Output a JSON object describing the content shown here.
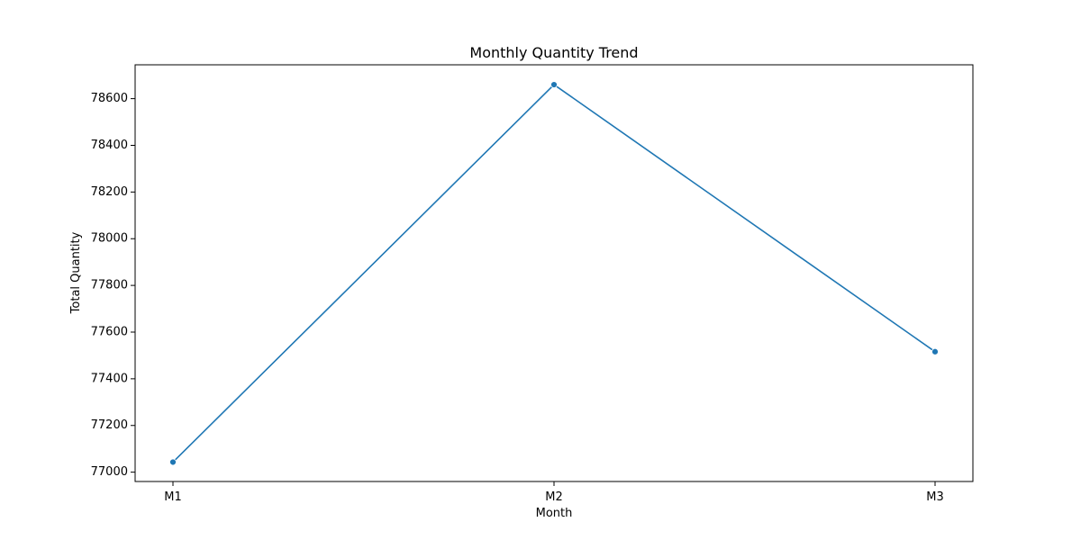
{
  "chart_data": {
    "type": "line",
    "title": "Monthly Quantity Trend",
    "xlabel": "Month",
    "ylabel": "Total Quantity",
    "categories": [
      "M1",
      "M2",
      "M3"
    ],
    "series": [
      {
        "values": [
          77043,
          78660,
          77516
        ],
        "color": "#1f77b4",
        "marker": "circle"
      }
    ],
    "ylim": [
      76960,
      78745
    ],
    "y_ticks": [
      77000,
      77200,
      77400,
      77600,
      77800,
      78000,
      78200,
      78400,
      78600
    ],
    "grid": false,
    "legend": "none"
  }
}
